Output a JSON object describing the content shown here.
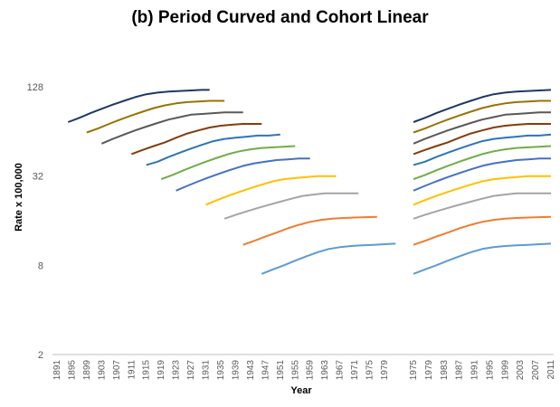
{
  "chart_data": {
    "type": "line",
    "title": "(b) Period Curved and Cohort Linear",
    "xlabel": "Year",
    "ylabel": "Rate x 100,000",
    "yscale": "log2",
    "ylim": [
      2,
      256
    ],
    "yticks": [
      2,
      8,
      32,
      128
    ],
    "grid": false,
    "legend": "none",
    "panels": [
      {
        "name": "cohort",
        "xlim": [
          1891,
          1982
        ],
        "xticks": [
          1891,
          1895,
          1899,
          1903,
          1907,
          1911,
          1915,
          1919,
          1923,
          1927,
          1931,
          1935,
          1939,
          1943,
          1947,
          1951,
          1955,
          1959,
          1963,
          1967,
          1971,
          1975,
          1979
        ]
      },
      {
        "name": "period",
        "xlim": [
          1975,
          2011
        ],
        "xticks": [
          1975,
          1979,
          1983,
          1987,
          1991,
          1995,
          1999,
          2003,
          2007,
          2011
        ]
      }
    ],
    "series": [
      {
        "color": "#1f3864",
        "cohort": [
          [
            1894,
            74
          ],
          [
            1897,
            79
          ],
          [
            1900,
            85
          ],
          [
            1903,
            91
          ],
          [
            1906,
            97
          ],
          [
            1909,
            103
          ],
          [
            1912,
            109
          ],
          [
            1915,
            114
          ],
          [
            1918,
            117
          ],
          [
            1921,
            119
          ],
          [
            1924,
            120
          ],
          [
            1927,
            121
          ],
          [
            1930,
            122
          ],
          [
            1932,
            122
          ]
        ],
        "period": [
          [
            1975,
            74
          ],
          [
            1978,
            79
          ],
          [
            1981,
            85
          ],
          [
            1984,
            91
          ],
          [
            1987,
            97
          ],
          [
            1990,
            103
          ],
          [
            1993,
            109
          ],
          [
            1996,
            114
          ],
          [
            1999,
            117
          ],
          [
            2002,
            119
          ],
          [
            2005,
            120
          ],
          [
            2008,
            121
          ],
          [
            2011,
            122
          ]
        ]
      },
      {
        "color": "#997300",
        "cohort": [
          [
            1899,
            63
          ],
          [
            1902,
            67
          ],
          [
            1905,
            72
          ],
          [
            1908,
            77
          ],
          [
            1911,
            82
          ],
          [
            1914,
            87
          ],
          [
            1917,
            92
          ],
          [
            1920,
            96
          ],
          [
            1923,
            99
          ],
          [
            1926,
            101
          ],
          [
            1929,
            102
          ],
          [
            1932,
            103
          ],
          [
            1935,
            103
          ],
          [
            1936,
            103
          ]
        ],
        "period": [
          [
            1975,
            63
          ],
          [
            1978,
            67
          ],
          [
            1981,
            72
          ],
          [
            1984,
            77
          ],
          [
            1987,
            82
          ],
          [
            1990,
            87
          ],
          [
            1993,
            92
          ],
          [
            1996,
            96
          ],
          [
            1999,
            99
          ],
          [
            2002,
            101
          ],
          [
            2005,
            102
          ],
          [
            2008,
            103
          ],
          [
            2011,
            103
          ]
        ]
      },
      {
        "color": "#595959",
        "cohort": [
          [
            1903,
            53
          ],
          [
            1906,
            57
          ],
          [
            1909,
            61
          ],
          [
            1912,
            65
          ],
          [
            1915,
            69
          ],
          [
            1918,
            73
          ],
          [
            1921,
            77
          ],
          [
            1924,
            80
          ],
          [
            1927,
            83
          ],
          [
            1930,
            84
          ],
          [
            1933,
            85
          ],
          [
            1936,
            86
          ],
          [
            1939,
            86
          ],
          [
            1941,
            86
          ]
        ],
        "period": [
          [
            1975,
            53
          ],
          [
            1978,
            57
          ],
          [
            1981,
            61
          ],
          [
            1984,
            65
          ],
          [
            1987,
            69
          ],
          [
            1990,
            73
          ],
          [
            1993,
            77
          ],
          [
            1996,
            80
          ],
          [
            1999,
            83
          ],
          [
            2002,
            84
          ],
          [
            2005,
            85
          ],
          [
            2008,
            86
          ],
          [
            2011,
            86
          ]
        ]
      },
      {
        "color": "#843c0c",
        "cohort": [
          [
            1911,
            45
          ],
          [
            1914,
            48
          ],
          [
            1917,
            51
          ],
          [
            1920,
            54
          ],
          [
            1923,
            58
          ],
          [
            1926,
            62
          ],
          [
            1929,
            65
          ],
          [
            1932,
            68
          ],
          [
            1935,
            70
          ],
          [
            1938,
            71
          ],
          [
            1941,
            72
          ],
          [
            1944,
            72
          ],
          [
            1946,
            72
          ]
        ],
        "period": [
          [
            1975,
            45
          ],
          [
            1978,
            48
          ],
          [
            1981,
            51
          ],
          [
            1984,
            54
          ],
          [
            1987,
            58
          ],
          [
            1990,
            62
          ],
          [
            1993,
            65
          ],
          [
            1996,
            68
          ],
          [
            1999,
            70
          ],
          [
            2002,
            71
          ],
          [
            2005,
            72
          ],
          [
            2008,
            72
          ],
          [
            2011,
            72
          ]
        ]
      },
      {
        "color": "#2e75b6",
        "cohort": [
          [
            1915,
            38
          ],
          [
            1918,
            40
          ],
          [
            1921,
            43
          ],
          [
            1924,
            46
          ],
          [
            1927,
            49
          ],
          [
            1930,
            52
          ],
          [
            1933,
            55
          ],
          [
            1936,
            57
          ],
          [
            1939,
            58
          ],
          [
            1942,
            59
          ],
          [
            1945,
            60
          ],
          [
            1948,
            60
          ],
          [
            1951,
            61
          ]
        ],
        "period": [
          [
            1975,
            38
          ],
          [
            1978,
            40
          ],
          [
            1981,
            43
          ],
          [
            1984,
            46
          ],
          [
            1987,
            49
          ],
          [
            1990,
            52
          ],
          [
            1993,
            55
          ],
          [
            1996,
            57
          ],
          [
            1999,
            58
          ],
          [
            2002,
            59
          ],
          [
            2005,
            60
          ],
          [
            2008,
            60
          ],
          [
            2011,
            61
          ]
        ]
      },
      {
        "color": "#70ad47",
        "cohort": [
          [
            1919,
            30.5
          ],
          [
            1922,
            32.5
          ],
          [
            1925,
            35
          ],
          [
            1928,
            37.5
          ],
          [
            1931,
            40
          ],
          [
            1934,
            42.5
          ],
          [
            1937,
            45
          ],
          [
            1940,
            47
          ],
          [
            1943,
            48.5
          ],
          [
            1946,
            49.5
          ],
          [
            1949,
            50
          ],
          [
            1952,
            50.5
          ],
          [
            1955,
            51
          ]
        ],
        "period": [
          [
            1975,
            30.5
          ],
          [
            1978,
            32.5
          ],
          [
            1981,
            35
          ],
          [
            1984,
            37.5
          ],
          [
            1987,
            40
          ],
          [
            1990,
            42.5
          ],
          [
            1993,
            45
          ],
          [
            1996,
            47
          ],
          [
            1999,
            48.5
          ],
          [
            2002,
            49.5
          ],
          [
            2005,
            50
          ],
          [
            2008,
            50.5
          ],
          [
            2011,
            51
          ]
        ]
      },
      {
        "color": "#4472c4",
        "cohort": [
          [
            1923,
            25.5
          ],
          [
            1926,
            27.5
          ],
          [
            1929,
            29.5
          ],
          [
            1932,
            31.5
          ],
          [
            1935,
            33.5
          ],
          [
            1938,
            35.5
          ],
          [
            1941,
            37.5
          ],
          [
            1944,
            39
          ],
          [
            1947,
            40
          ],
          [
            1950,
            41
          ],
          [
            1953,
            41.5
          ],
          [
            1956,
            42
          ],
          [
            1959,
            42
          ]
        ],
        "period": [
          [
            1975,
            25.5
          ],
          [
            1978,
            27.5
          ],
          [
            1981,
            29.5
          ],
          [
            1984,
            31.5
          ],
          [
            1987,
            33.5
          ],
          [
            1990,
            35.5
          ],
          [
            1993,
            37.5
          ],
          [
            1996,
            39
          ],
          [
            1999,
            40
          ],
          [
            2002,
            41
          ],
          [
            2005,
            41.5
          ],
          [
            2008,
            42
          ],
          [
            2011,
            42
          ]
        ]
      },
      {
        "color": "#ffc000",
        "cohort": [
          [
            1931,
            20.5
          ],
          [
            1934,
            22
          ],
          [
            1937,
            23.5
          ],
          [
            1940,
            25
          ],
          [
            1943,
            26.5
          ],
          [
            1946,
            28
          ],
          [
            1949,
            29.5
          ],
          [
            1952,
            30.5
          ],
          [
            1955,
            31
          ],
          [
            1958,
            31.5
          ],
          [
            1961,
            32
          ],
          [
            1964,
            32
          ],
          [
            1966,
            32
          ]
        ],
        "period": [
          [
            1975,
            20.5
          ],
          [
            1978,
            22
          ],
          [
            1981,
            23.5
          ],
          [
            1984,
            25
          ],
          [
            1987,
            26.5
          ],
          [
            1990,
            28
          ],
          [
            1993,
            29.5
          ],
          [
            1996,
            30.5
          ],
          [
            1999,
            31
          ],
          [
            2002,
            31.5
          ],
          [
            2005,
            32
          ],
          [
            2008,
            32
          ],
          [
            2011,
            32
          ]
        ]
      },
      {
        "color": "#a5a5a5",
        "cohort": [
          [
            1936,
            16.5
          ],
          [
            1939,
            17.5
          ],
          [
            1942,
            18.5
          ],
          [
            1945,
            19.5
          ],
          [
            1948,
            20.5
          ],
          [
            1951,
            21.5
          ],
          [
            1954,
            22.5
          ],
          [
            1957,
            23.5
          ],
          [
            1960,
            24
          ],
          [
            1963,
            24.5
          ],
          [
            1966,
            24.5
          ],
          [
            1969,
            24.5
          ],
          [
            1972,
            24.5
          ]
        ],
        "period": [
          [
            1975,
            16.5
          ],
          [
            1978,
            17.5
          ],
          [
            1981,
            18.5
          ],
          [
            1984,
            19.5
          ],
          [
            1987,
            20.5
          ],
          [
            1990,
            21.5
          ],
          [
            1993,
            22.5
          ],
          [
            1996,
            23.5
          ],
          [
            1999,
            24
          ],
          [
            2002,
            24.5
          ],
          [
            2005,
            24.5
          ],
          [
            2008,
            24.5
          ],
          [
            2011,
            24.5
          ]
        ]
      },
      {
        "color": "#ed7d31",
        "cohort": [
          [
            1941,
            11
          ],
          [
            1944,
            11.7
          ],
          [
            1947,
            12.5
          ],
          [
            1950,
            13.3
          ],
          [
            1953,
            14.2
          ],
          [
            1956,
            15
          ],
          [
            1959,
            15.7
          ],
          [
            1962,
            16.2
          ],
          [
            1965,
            16.5
          ],
          [
            1968,
            16.7
          ],
          [
            1971,
            16.8
          ],
          [
            1974,
            16.9
          ],
          [
            1977,
            17
          ]
        ],
        "period": [
          [
            1975,
            11
          ],
          [
            1978,
            11.7
          ],
          [
            1981,
            12.5
          ],
          [
            1984,
            13.3
          ],
          [
            1987,
            14.2
          ],
          [
            1990,
            15
          ],
          [
            1993,
            15.7
          ],
          [
            1996,
            16.2
          ],
          [
            1999,
            16.5
          ],
          [
            2002,
            16.7
          ],
          [
            2005,
            16.8
          ],
          [
            2008,
            16.9
          ],
          [
            2011,
            17
          ]
        ]
      },
      {
        "color": "#5b9bd5",
        "cohort": [
          [
            1946,
            7
          ],
          [
            1949,
            7.5
          ],
          [
            1952,
            8
          ],
          [
            1955,
            8.6
          ],
          [
            1958,
            9.2
          ],
          [
            1961,
            9.8
          ],
          [
            1964,
            10.3
          ],
          [
            1967,
            10.6
          ],
          [
            1970,
            10.8
          ],
          [
            1973,
            10.9
          ],
          [
            1976,
            11
          ],
          [
            1979,
            11.1
          ],
          [
            1982,
            11.2
          ]
        ],
        "period": [
          [
            1975,
            7
          ],
          [
            1978,
            7.5
          ],
          [
            1981,
            8
          ],
          [
            1984,
            8.6
          ],
          [
            1987,
            9.2
          ],
          [
            1990,
            9.8
          ],
          [
            1993,
            10.3
          ],
          [
            1996,
            10.6
          ],
          [
            1999,
            10.8
          ],
          [
            2002,
            10.9
          ],
          [
            2005,
            11
          ],
          [
            2008,
            11.1
          ],
          [
            2011,
            11.2
          ]
        ]
      }
    ]
  }
}
